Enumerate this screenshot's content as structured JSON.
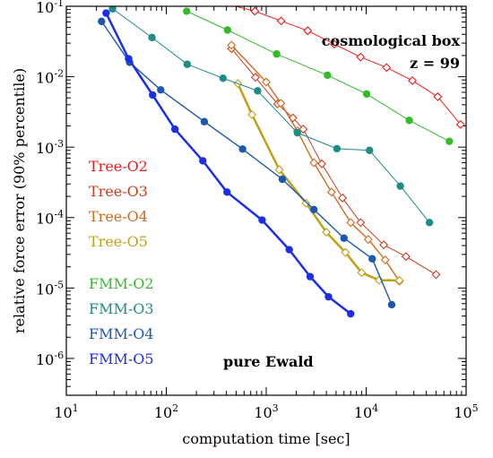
{
  "chart_data": {
    "type": "line",
    "xlabel": "computation time  [sec]",
    "ylabel": "relative force error (90% percentile)",
    "xscale": "log",
    "yscale": "log",
    "xlim": [
      10,
      100000
    ],
    "ylim": [
      3e-07,
      0.1
    ],
    "x_ticks": [
      {
        "value": 10,
        "base": "10",
        "exp": "1"
      },
      {
        "value": 100,
        "base": "10",
        "exp": "2"
      },
      {
        "value": 1000,
        "base": "10",
        "exp": "3"
      },
      {
        "value": 10000,
        "base": "10",
        "exp": "4"
      },
      {
        "value": 100000,
        "base": "10",
        "exp": "5"
      }
    ],
    "y_ticks": [
      {
        "value": 1e-06,
        "base": "10",
        "exp": "-6"
      },
      {
        "value": 1e-05,
        "base": "10",
        "exp": "-5"
      },
      {
        "value": 0.0001,
        "base": "10",
        "exp": "-4"
      },
      {
        "value": 0.001,
        "base": "10",
        "exp": "-3"
      },
      {
        "value": 0.01,
        "base": "10",
        "exp": "-2"
      },
      {
        "value": 0.1,
        "base": "10",
        "exp": "-1"
      }
    ],
    "annotations": {
      "box_label": "cosmological box",
      "redshift_label": "z = 99",
      "ewald_label": "pure Ewald"
    },
    "series": [
      {
        "name": "Tree-O2",
        "color": "#ee1c1c",
        "marker": "open-diamond",
        "width": 1,
        "x": [
          115,
          770,
          1410,
          2600,
          4800,
          8800,
          16000,
          29000,
          52000,
          88000
        ],
        "y": [
          0.17,
          0.085,
          0.062,
          0.045,
          0.029,
          0.019,
          0.0135,
          0.0088,
          0.0052,
          0.0021
        ]
      },
      {
        "name": "Tree-O3",
        "color": "#cc3d1c",
        "marker": "open-diamond",
        "width": 1,
        "x": [
          450,
          780,
          1300,
          1850,
          2350,
          3600,
          5800,
          8800,
          15000,
          25000,
          50000
        ],
        "y": [
          0.025,
          0.0098,
          0.0041,
          0.0026,
          0.0018,
          0.00058,
          0.00019,
          8.5e-05,
          4.1e-05,
          2.8e-05,
          1.55e-05
        ]
      },
      {
        "name": "Tree-O4",
        "color": "#d2691e",
        "marker": "open-diamond",
        "width": 1.4,
        "x": [
          450,
          1000,
          1400,
          2050,
          3000,
          4500,
          7000,
          10500,
          15500,
          21500
        ],
        "y": [
          0.028,
          0.0084,
          0.0042,
          0.0017,
          0.0006,
          0.00023,
          8.5e-05,
          4.9e-05,
          2.5e-05,
          1.25e-05
        ]
      },
      {
        "name": "Tree-O5",
        "color": "#c0a016",
        "marker": "open-diamond",
        "width": 2.5,
        "x": [
          520,
          720,
          1350,
          2500,
          4000,
          6200,
          9000,
          13500,
          21500
        ],
        "y": [
          0.008,
          0.0029,
          0.00048,
          0.00016,
          6.2e-05,
          3.2e-05,
          1.65e-05,
          1.29e-05,
          1.28e-05
        ]
      },
      {
        "name": "FMM-O2",
        "color": "#33bb2c",
        "marker": "filled-circle",
        "width": 1,
        "x": [
          160,
          410,
          1270,
          4100,
          10100,
          27000,
          68000
        ],
        "y": [
          0.085,
          0.046,
          0.021,
          0.0105,
          0.0057,
          0.0024,
          0.00121
        ]
      },
      {
        "name": "FMM-O3",
        "color": "#1e8c86",
        "marker": "filled-circle",
        "width": 1,
        "x": [
          29,
          72,
          162,
          370,
          820,
          2050,
          5100,
          10800,
          22000,
          43000
        ],
        "y": [
          0.092,
          0.036,
          0.015,
          0.0095,
          0.0063,
          0.0016,
          0.00095,
          0.0009,
          0.00028,
          8.5e-05
        ]
      },
      {
        "name": "FMM-O4",
        "color": "#1c58b0",
        "marker": "filled-circle",
        "width": 1.4,
        "x": [
          22.5,
          43,
          88,
          240,
          580,
          1450,
          3000,
          6000,
          11500,
          18000
        ],
        "y": [
          0.061,
          0.016,
          0.0065,
          0.0023,
          0.00094,
          0.00035,
          0.00013,
          5.1e-05,
          2.6e-05,
          5.8e-06
        ]
      },
      {
        "name": "FMM-O5",
        "color": "#1c2ee8",
        "marker": "filled-circle",
        "width": 2.5,
        "x": [
          25,
          42,
          73,
          122,
          232,
          405,
          910,
          1700,
          2750,
          4200,
          7000
        ],
        "y": [
          0.08,
          0.018,
          0.0055,
          0.0018,
          0.00064,
          0.00023,
          9.2e-05,
          3.5e-05,
          1.45e-05,
          7.5e-06,
          4.3e-06
        ]
      }
    ]
  }
}
